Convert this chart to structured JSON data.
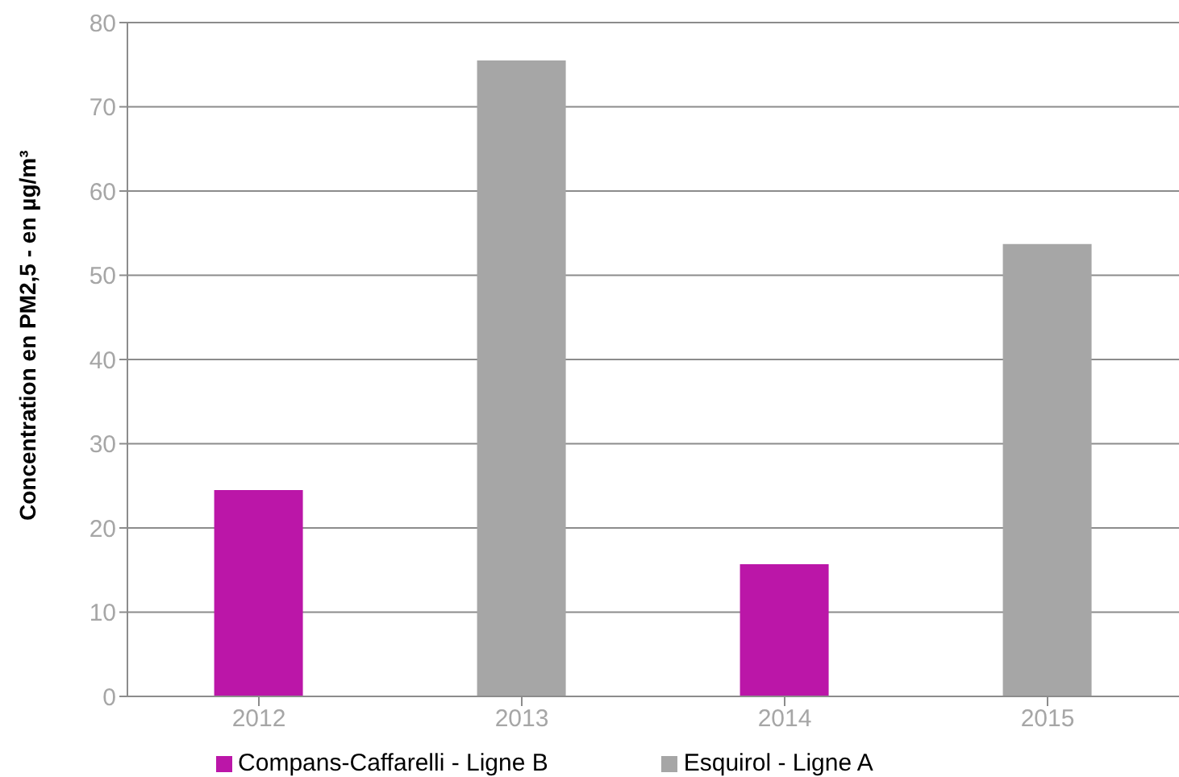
{
  "chart_data": {
    "type": "bar",
    "ylabel": "Concentration en PM2,5 - en µg/m³",
    "categories": [
      "2012",
      "2013",
      "2014",
      "2015"
    ],
    "stacked": true,
    "series": [
      {
        "name": "Esquirol - Ligne A",
        "color": "#a6a6a6",
        "values": [
          null,
          75.5,
          null,
          53.7
        ]
      },
      {
        "name": "Compans-Caffarelli - Ligne B",
        "color": "#bb16a8",
        "values": [
          24.5,
          null,
          15.7,
          null
        ]
      }
    ],
    "ylim": [
      0,
      80
    ],
    "yticks": [
      0,
      10,
      20,
      30,
      40,
      50,
      60,
      70,
      80
    ],
    "grid": "y",
    "legend": "bottom"
  }
}
